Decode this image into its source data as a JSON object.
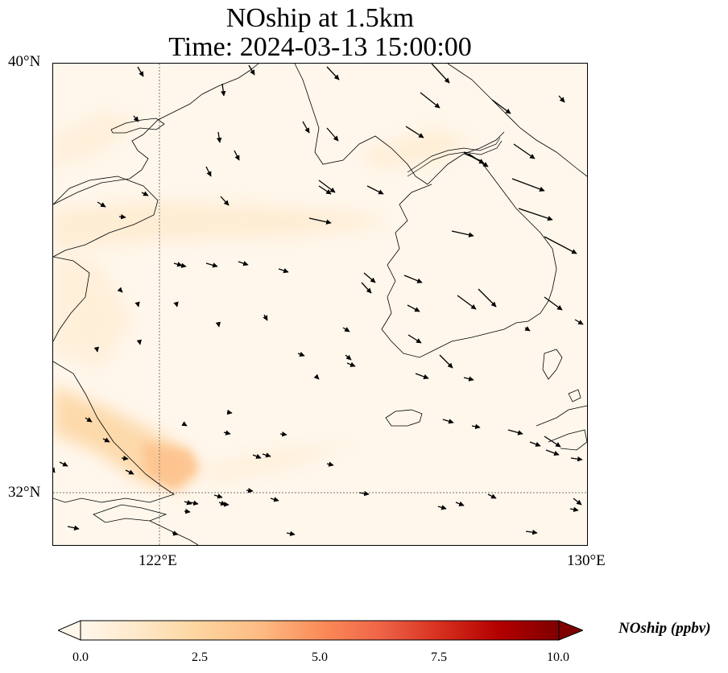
{
  "title": {
    "line1": "NOship at 1.5km",
    "line2": "Time: 2024-03-13 15:00:00"
  },
  "map": {
    "lon_range": [
      119.5,
      130
    ],
    "lat_range": [
      31,
      40
    ],
    "lat_ticks": [
      {
        "value": 40,
        "label": "40°N"
      },
      {
        "value": 32,
        "label": "32°N"
      }
    ],
    "lon_ticks": [
      {
        "value": 122,
        "label": "122°E"
      },
      {
        "value": 130,
        "label": "130°E"
      }
    ],
    "gridlines": {
      "lon": 122,
      "lat": 32,
      "style": "dotted"
    },
    "field_colors": {
      "low": "#fff7ec",
      "mid": "#fdd49e",
      "high": "#fc8d59"
    },
    "coastline_color": "#000000",
    "wind_arrow_color": "#000000"
  },
  "colorbar": {
    "label": "NOship (ppbv)",
    "ticks": [
      "0.0",
      "2.5",
      "5.0",
      "7.5",
      "10.0"
    ],
    "range": [
      0,
      10
    ],
    "extend": "both",
    "colormap": "OrRd",
    "colors": [
      "#fff7ec",
      "#fee8c8",
      "#fdd49e",
      "#fdbb84",
      "#fc8d59",
      "#ef6548",
      "#d7301f",
      "#b30000",
      "#7f0000"
    ]
  }
}
